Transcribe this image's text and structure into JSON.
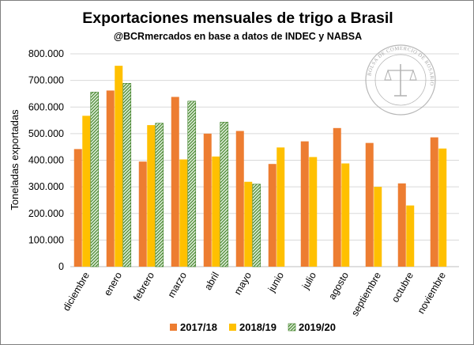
{
  "chart_data": {
    "type": "bar",
    "title": "Exportaciones mensuales de trigo a Brasil",
    "subtitle": "@BCRmercados en base a datos de INDEC y NABSA",
    "ylabel": "Toneladas exportadas",
    "xlabel": "",
    "ylim": [
      0,
      800000
    ],
    "yticks": [
      0,
      100000,
      200000,
      300000,
      400000,
      500000,
      600000,
      700000,
      800000
    ],
    "ytick_labels": [
      "0",
      "100.000",
      "200.000",
      "300.000",
      "400.000",
      "500.000",
      "600.000",
      "700.000",
      "800.000"
    ],
    "categories": [
      "diciembre",
      "enero",
      "febrero",
      "marzo",
      "abril",
      "mayo",
      "junio",
      "julio",
      "agosto",
      "septiembre",
      "octubre",
      "noviembre"
    ],
    "series": [
      {
        "name": "2017/18",
        "color": "#ed7d31",
        "pattern": "solid",
        "values": [
          442000,
          662000,
          395000,
          638000,
          500000,
          510000,
          386000,
          471000,
          521000,
          465000,
          313000,
          486000
        ]
      },
      {
        "name": "2018/19",
        "color": "#ffc000",
        "pattern": "solid",
        "values": [
          567000,
          755000,
          532000,
          403000,
          414000,
          319000,
          448000,
          412000,
          388000,
          300000,
          230000,
          444000
        ]
      },
      {
        "name": "2019/20",
        "color": "#70ad47",
        "pattern": "hatched",
        "values": [
          656000,
          689000,
          539000,
          622000,
          543000,
          310000,
          null,
          null,
          null,
          null,
          null,
          null
        ]
      }
    ],
    "grid": true,
    "legend_position": "bottom"
  },
  "seal": {
    "text": "BOLSA DE COMERCIO DE ROSARIO",
    "icon": "bolsa-comercio-rosario-seal-icon"
  }
}
